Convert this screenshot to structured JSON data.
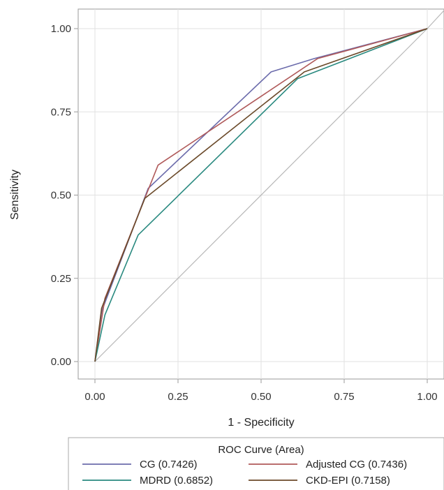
{
  "chart_data": {
    "type": "line",
    "xlabel": "1 - Specificity",
    "ylabel": "Sensitivity",
    "xlim": [
      0,
      1
    ],
    "ylim": [
      0,
      1
    ],
    "x_ticks": [
      "0.00",
      "0.25",
      "0.50",
      "0.75",
      "1.00"
    ],
    "y_ticks": [
      "0.00",
      "0.25",
      "0.50",
      "0.75",
      "1.00"
    ],
    "grid": true,
    "legend_title": "ROC Curve (Area)",
    "legend_position": "bottom",
    "reference_line": "diagonal",
    "series": [
      {
        "name": "CG  (0.7426)",
        "color": "#6b6bab",
        "points": [
          [
            0,
            0
          ],
          [
            0.02,
            0.15
          ],
          [
            0.16,
            0.52
          ],
          [
            0.53,
            0.87
          ],
          [
            0.66,
            0.91
          ],
          [
            1,
            1
          ]
        ]
      },
      {
        "name": "Adjusted CG  (0.7436)",
        "color": "#b05a5a",
        "points": [
          [
            0,
            0
          ],
          [
            0.03,
            0.19
          ],
          [
            0.19,
            0.59
          ],
          [
            0.67,
            0.91
          ],
          [
            1,
            1
          ]
        ]
      },
      {
        "name": "MDRD  (0.6852)",
        "color": "#2a8a80",
        "points": [
          [
            0,
            0
          ],
          [
            0.03,
            0.14
          ],
          [
            0.13,
            0.38
          ],
          [
            0.61,
            0.85
          ],
          [
            1,
            1
          ]
        ]
      },
      {
        "name": "CKD-EPI  (0.7158)",
        "color": "#6b4a2a",
        "points": [
          [
            0,
            0
          ],
          [
            0.02,
            0.16
          ],
          [
            0.15,
            0.49
          ],
          [
            0.63,
            0.87
          ],
          [
            1,
            1
          ]
        ]
      }
    ]
  }
}
